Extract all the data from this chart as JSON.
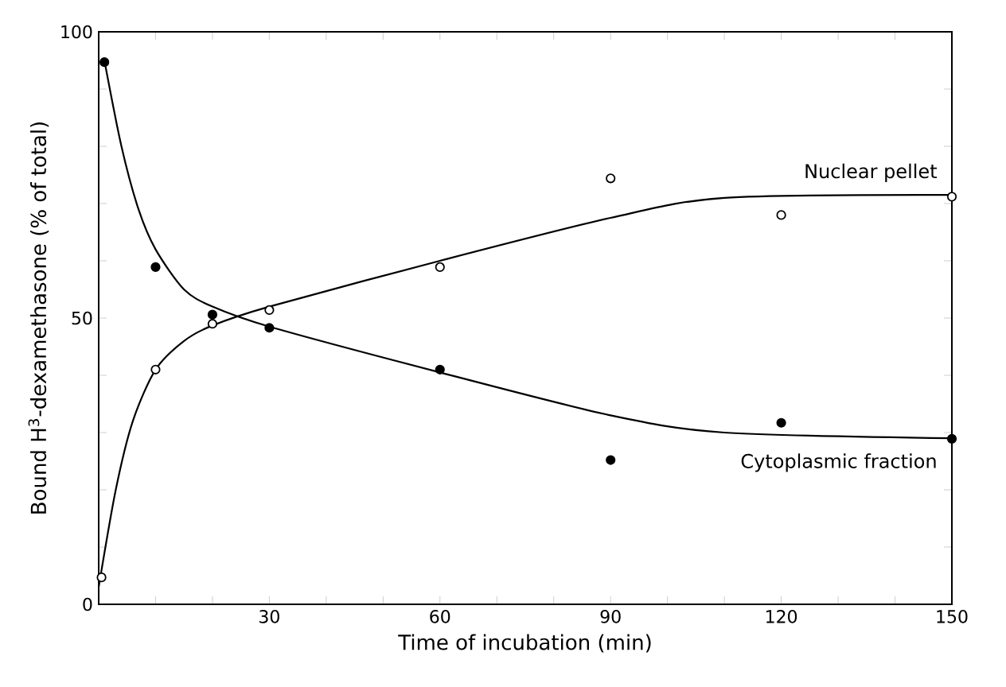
{
  "chart_data": {
    "type": "scatter",
    "xlabel": "Time of incubation (min)",
    "ylabel": "Bound H$^{3}$-dexamethasone (% of total)",
    "xlim": [
      0,
      150
    ],
    "ylim": [
      0,
      100
    ],
    "xticks": [
      {
        "value": 0,
        "label": null
      },
      {
        "value": 10,
        "label": null
      },
      {
        "value": 20,
        "label": null
      },
      30,
      {
        "value": 40,
        "label": null
      },
      {
        "value": 50,
        "label": null
      },
      60,
      {
        "value": 70,
        "label": null
      },
      {
        "value": 80,
        "label": null
      },
      90,
      {
        "value": 100,
        "label": null
      },
      {
        "value": 110,
        "label": null
      },
      120,
      {
        "value": 130,
        "label": null
      },
      {
        "value": 140,
        "label": null
      },
      150
    ],
    "yticks": [
      0,
      {
        "value": 10,
        "label": null
      },
      {
        "value": 20,
        "label": null
      },
      {
        "value": 30,
        "label": null
      },
      {
        "value": 40,
        "label": null
      },
      50,
      {
        "value": 60,
        "label": null
      },
      {
        "value": 70,
        "label": null
      },
      {
        "value": 80,
        "label": null
      },
      {
        "value": 90,
        "label": null
      },
      100
    ],
    "grid": false,
    "series": [
      {
        "name": "Nuclear pellet",
        "marker": "circle",
        "color": "#ffffff",
        "x": [
          0.5,
          10,
          20,
          30,
          60,
          90,
          120,
          150
        ],
        "values": [
          4.7,
          41,
          49,
          51.4,
          58.9,
          74.4,
          68,
          71.2
        ]
      },
      {
        "name": "Cytoplasmic fraction",
        "marker": "circle",
        "color": "#000000",
        "x": [
          1,
          10,
          20,
          30,
          60,
          90,
          120,
          150
        ],
        "values": [
          94.7,
          58.9,
          50.6,
          48.3,
          41,
          25.2,
          31.7,
          28.9
        ]
      },
      {
        "type": "line",
        "color": "#000000",
        "marker": "none",
        "line_style": "solid",
        "x": [
          0,
          3,
          6,
          10,
          15,
          20,
          30,
          60,
          90,
          110,
          150
        ],
        "values": [
          3,
          20,
          32,
          41,
          46,
          48.7,
          52,
          60,
          67.5,
          71,
          71.5
        ]
      },
      {
        "type": "line",
        "color": "#000000",
        "marker": "none",
        "line_style": "solid",
        "x": [
          1,
          4,
          7,
          10,
          15,
          20,
          30,
          60,
          90,
          110,
          150
        ],
        "values": [
          95,
          80,
          69,
          62,
          55,
          52,
          48.5,
          40.5,
          33,
          30,
          29
        ]
      }
    ]
  }
}
